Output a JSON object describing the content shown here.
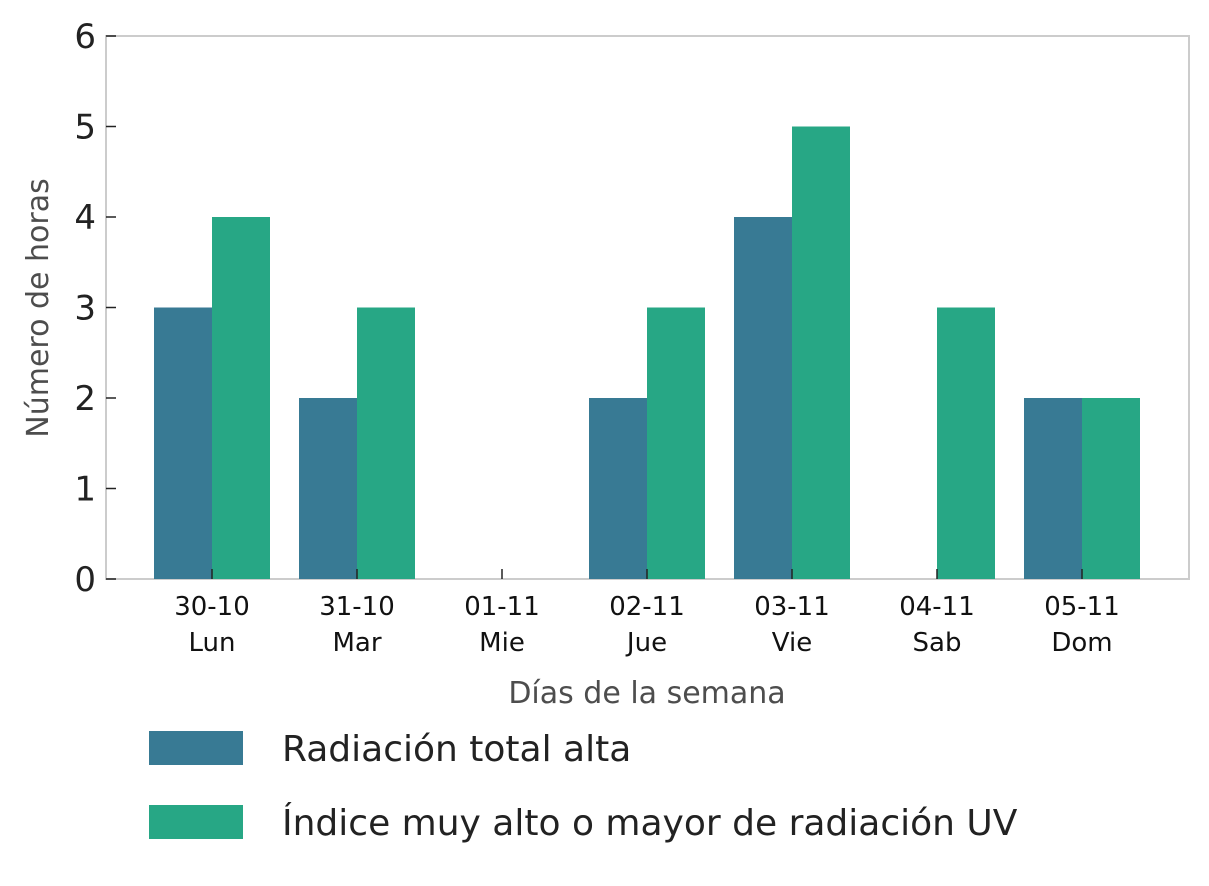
{
  "chart_data": {
    "type": "bar",
    "categories": [
      {
        "date": "30-10",
        "day": "Lun"
      },
      {
        "date": "31-10",
        "day": "Mar"
      },
      {
        "date": "01-11",
        "day": "Mie"
      },
      {
        "date": "02-11",
        "day": "Jue"
      },
      {
        "date": "03-11",
        "day": "Vie"
      },
      {
        "date": "04-11",
        "day": "Sab"
      },
      {
        "date": "05-11",
        "day": "Dom"
      }
    ],
    "series": [
      {
        "name": "Radiación total alta",
        "color": "#387a94",
        "values": [
          3,
          2,
          0,
          2,
          4,
          0,
          2
        ]
      },
      {
        "name": "Índice muy alto o mayor de radiación UV",
        "color": "#27a785",
        "values": [
          4,
          3,
          0,
          3,
          5,
          3,
          2
        ]
      }
    ],
    "xlabel": "Días de la semana",
    "ylabel": "Número de horas",
    "ylim": [
      0,
      6
    ],
    "yticks": [
      0,
      1,
      2,
      3,
      4,
      5,
      6
    ],
    "grid": false,
    "legend_position": "bottom"
  }
}
